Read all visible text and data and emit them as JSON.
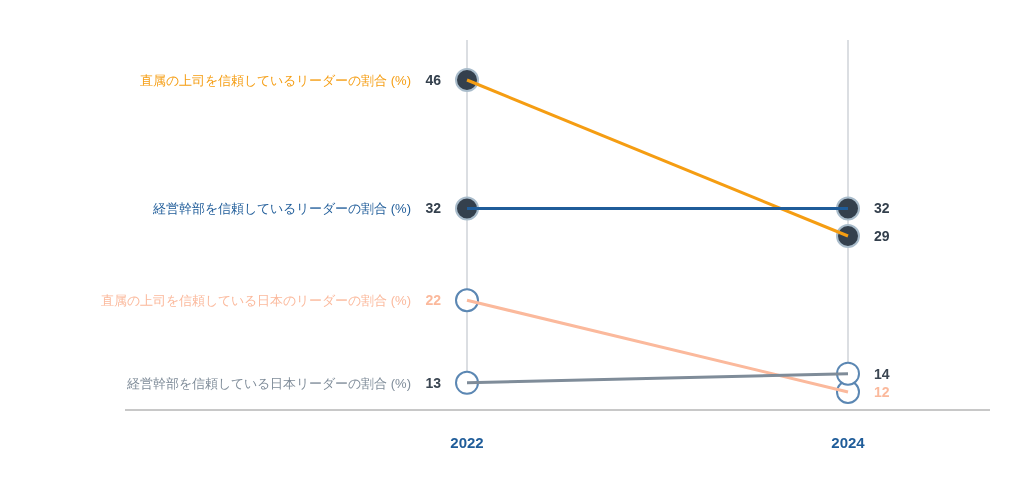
{
  "chart_data": {
    "type": "line",
    "categories": [
      "2022",
      "2024"
    ],
    "grid": "x",
    "data_labels": true,
    "marker": "circle",
    "series": [
      {
        "name": "直属の上司を信頼しているリーダーの割合 (%)",
        "color": "#f59d12",
        "values": [
          46,
          29
        ]
      },
      {
        "name": "経営幹部を信頼しているリーダーの割合 (%)",
        "color": "#1f5c99",
        "values": [
          32,
          32
        ]
      },
      {
        "name": "直属の上司を信頼している日本のリーダーの割合 (%)",
        "color": "#fbb99c",
        "values": [
          22,
          12
        ]
      },
      {
        "name": "経営幹部を信頼している日本リーダーの割合 (%)",
        "color": "#7f8c99",
        "values": [
          13,
          14
        ]
      }
    ]
  }
}
